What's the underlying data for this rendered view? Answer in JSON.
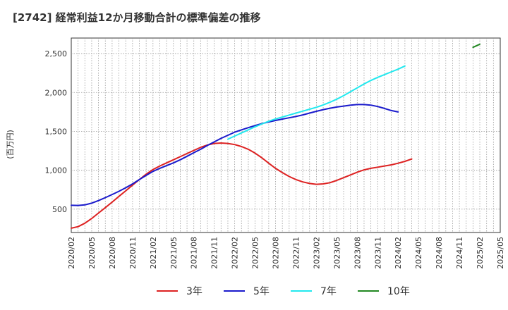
{
  "chart_data": {
    "type": "line",
    "title": "[2742]  経常利益12か月移動合計の標準偏差の推移",
    "ylabel": "(百万円)",
    "xlabel": "",
    "ylim": [
      200,
      2700
    ],
    "yticks": [
      500,
      1000,
      1500,
      2000,
      2500
    ],
    "ytick_labels": [
      "500",
      "1,000",
      "1,500",
      "2,000",
      "2,500"
    ],
    "xticks": [
      "2020/02",
      "2020/05",
      "2020/08",
      "2020/11",
      "2021/02",
      "2021/05",
      "2021/08",
      "2021/11",
      "2022/02",
      "2022/05",
      "2022/08",
      "2022/11",
      "2023/02",
      "2023/05",
      "2023/08",
      "2023/11",
      "2024/02",
      "2024/05",
      "2024/08",
      "2024/11",
      "2025/02",
      "2025/05"
    ],
    "grid": true,
    "legend_position": "bottom",
    "series": [
      {
        "name": "3年",
        "color": "#dd2222",
        "start": "2020/02",
        "values": [
          255,
          275,
          320,
          380,
          450,
          520,
          590,
          665,
          735,
          810,
          880,
          950,
          1010,
          1055,
          1095,
          1135,
          1175,
          1215,
          1255,
          1295,
          1325,
          1345,
          1350,
          1345,
          1330,
          1305,
          1270,
          1220,
          1160,
          1090,
          1025,
          970,
          920,
          880,
          850,
          830,
          820,
          825,
          840,
          870,
          905,
          940,
          975,
          1005,
          1025,
          1040,
          1055,
          1070,
          1090,
          1115,
          1145
        ]
      },
      {
        "name": "5年",
        "color": "#1a1acc",
        "start": "2020/02",
        "values": [
          550,
          548,
          555,
          578,
          610,
          648,
          688,
          730,
          775,
          825,
          880,
          935,
          985,
          1025,
          1060,
          1095,
          1135,
          1180,
          1225,
          1270,
          1320,
          1365,
          1410,
          1450,
          1490,
          1520,
          1548,
          1575,
          1600,
          1620,
          1640,
          1658,
          1675,
          1692,
          1712,
          1735,
          1758,
          1780,
          1798,
          1813,
          1825,
          1838,
          1845,
          1845,
          1838,
          1820,
          1795,
          1768,
          1750
        ]
      },
      {
        "name": "7年",
        "color": "#22e8ee",
        "start": "2022/01",
        "values": [
          1400,
          1440,
          1480,
          1520,
          1560,
          1595,
          1630,
          1660,
          1685,
          1710,
          1735,
          1760,
          1785,
          1810,
          1840,
          1875,
          1915,
          1960,
          2010,
          2060,
          2110,
          2155,
          2195,
          2230,
          2265,
          2300,
          2340
        ]
      },
      {
        "name": "10年",
        "color": "#228822",
        "start": "2025/01",
        "values": [
          2580,
          2620
        ]
      }
    ]
  }
}
